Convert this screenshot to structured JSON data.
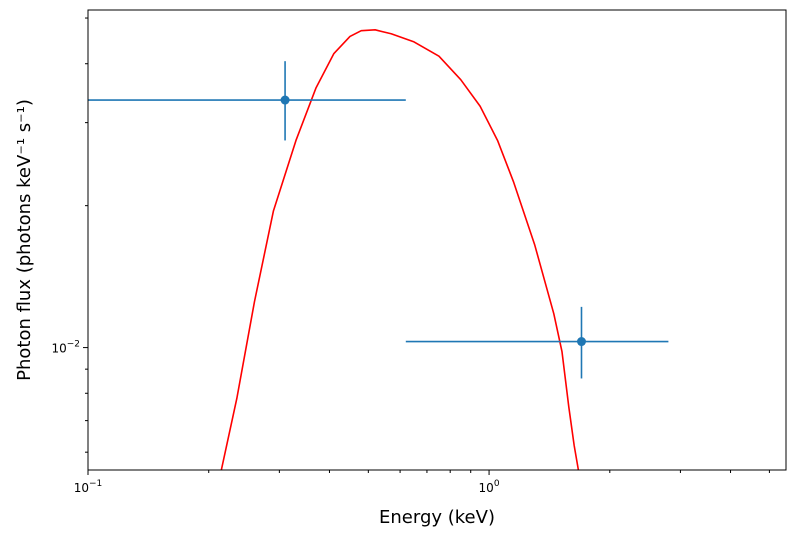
{
  "chart_data": {
    "type": "scatter",
    "xlabel": "Energy (keV)",
    "ylabel": "Photon flux (photons keV⁻¹ s⁻¹)",
    "xscale": "log",
    "yscale": "log",
    "xlim": [
      0.1,
      5.5
    ],
    "ylim": [
      0.0055,
      0.052
    ],
    "grid": false,
    "x_tick_labels": [
      {
        "value": 0.1,
        "base": "10",
        "exp": "−1"
      },
      {
        "value": 1,
        "base": "10",
        "exp": "0"
      }
    ],
    "y_tick_labels": [
      {
        "value": 0.01,
        "base": "10",
        "exp": "−2"
      }
    ],
    "points": {
      "color": "#1f77b4",
      "data": [
        {
          "x": 0.31,
          "y": 0.0335,
          "xerr": [
            0.1,
            0.62
          ],
          "yerr": [
            0.0275,
            0.0405
          ]
        },
        {
          "x": 1.7,
          "y": 0.0103,
          "xerr": [
            0.62,
            2.8
          ],
          "yerr": [
            0.0086,
            0.0122
          ]
        }
      ]
    },
    "model_curve": {
      "color": "#ff0000",
      "points": [
        [
          0.215,
          0.0055
        ],
        [
          0.235,
          0.0078
        ],
        [
          0.26,
          0.0125
        ],
        [
          0.29,
          0.0195
        ],
        [
          0.33,
          0.0275
        ],
        [
          0.37,
          0.0355
        ],
        [
          0.41,
          0.042
        ],
        [
          0.45,
          0.0457
        ],
        [
          0.48,
          0.047
        ],
        [
          0.52,
          0.0472
        ],
        [
          0.57,
          0.0463
        ],
        [
          0.65,
          0.0445
        ],
        [
          0.75,
          0.0415
        ],
        [
          0.85,
          0.037
        ],
        [
          0.95,
          0.0325
        ],
        [
          1.05,
          0.0275
        ],
        [
          1.15,
          0.0225
        ],
        [
          1.3,
          0.0165
        ],
        [
          1.45,
          0.0118
        ],
        [
          1.52,
          0.0098
        ],
        [
          1.58,
          0.0075
        ],
        [
          1.63,
          0.0062
        ],
        [
          1.67,
          0.0055
        ]
      ]
    }
  }
}
